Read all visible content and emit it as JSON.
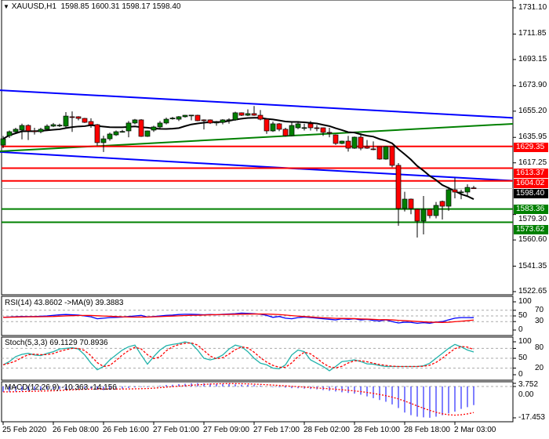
{
  "header": {
    "symbol": "XAUUSD,H1",
    "ohlc": "1598.85 1600.31 1598.17 1598.40",
    "menu_icon": "triangle-down-icon"
  },
  "colors": {
    "bull": "#008000",
    "bear": "#ff0000",
    "ma": "#000000",
    "channel": "#0000ff",
    "support": "#008000",
    "resistance": "#ff0000",
    "rsi": "#0000ff",
    "rsi_ma": "#ff0000",
    "stoch_main": "#20b2aa",
    "stoch_signal": "#ff0000",
    "macd_hist": "#0000ff",
    "macd_signal": "#ff0000"
  },
  "time_axis": [
    "25 Feb 2020",
    "26 Feb 08:00",
    "26 Feb 16:00",
    "27 Feb 01:00",
    "27 Feb 09:00",
    "27 Feb 17:00",
    "28 Feb 02:00",
    "28 Feb 10:00",
    "28 Feb 18:00",
    "2 Mar 03:00"
  ],
  "chart_data": [
    {
      "type": "candlestick",
      "ylim": [
        1522.65,
        1731.1
      ],
      "y_ticks": [
        "1731.10",
        "1711.85",
        "1693.15",
        "1673.90",
        "1655.20",
        "1635.95",
        "1617.25",
        "1579.30",
        "1560.60",
        "1541.35",
        "1522.65"
      ],
      "current_price": "1598.40",
      "candles": [
        [
          1630.3,
          1637,
          1628,
          1634.9
        ],
        [
          1637.2,
          1641,
          1635.5,
          1640.1
        ],
        [
          1640.1,
          1643,
          1639,
          1641.9
        ],
        [
          1641.3,
          1646,
          1634.5,
          1644.7
        ],
        [
          1644.7,
          1645.5,
          1634,
          1640.7
        ],
        [
          1640.7,
          1643,
          1638,
          1640.5
        ],
        [
          1640.1,
          1643,
          1639,
          1641.9
        ],
        [
          1641.9,
          1645.5,
          1641,
          1644.2
        ],
        [
          1644.2,
          1646.5,
          1643.5,
          1645.3
        ],
        [
          1644.7,
          1646,
          1643.5,
          1644.9
        ],
        [
          1644.2,
          1654.5,
          1643,
          1651.6
        ],
        [
          1651.1,
          1655,
          1640,
          1651.0
        ],
        [
          1651.1,
          1651.5,
          1648.5,
          1649.9
        ],
        [
          1649.9,
          1650.3,
          1646.5,
          1647.0
        ],
        [
          1647.6,
          1650,
          1643,
          1645.3
        ],
        [
          1645.3,
          1645.8,
          1630,
          1632.1
        ],
        [
          1632.1,
          1637.2,
          1625.2,
          1634.9
        ],
        [
          1634.9,
          1639.5,
          1633.5,
          1638.4
        ],
        [
          1637.8,
          1641,
          1637,
          1640.1
        ],
        [
          1640.1,
          1641.5,
          1639.5,
          1640.3
        ],
        [
          1640.7,
          1648,
          1636,
          1646.5
        ],
        [
          1646.5,
          1649.5,
          1645.5,
          1648.8
        ],
        [
          1648.8,
          1649.3,
          1636.3,
          1636.7
        ],
        [
          1636.7,
          1641,
          1636.3,
          1640.7
        ],
        [
          1641.3,
          1644.5,
          1640,
          1643.6
        ],
        [
          1643.6,
          1648,
          1642.5,
          1646.5
        ],
        [
          1646.5,
          1650.5,
          1645.5,
          1649.3
        ],
        [
          1649.9,
          1651,
          1649,
          1650.1
        ],
        [
          1649.3,
          1651.6,
          1648,
          1651.1
        ],
        [
          1651.1,
          1652.5,
          1650.5,
          1652.2
        ],
        [
          1652.2,
          1652.4,
          1648.5,
          1652.3
        ],
        [
          1652.2,
          1652.6,
          1647.8,
          1648.2
        ],
        [
          1648.8,
          1649.2,
          1641.8,
          1648.2
        ],
        [
          1648.8,
          1649.2,
          1645.8,
          1646.5
        ],
        [
          1647.0,
          1648,
          1644.5,
          1647.1
        ],
        [
          1647.0,
          1649.3,
          1645.5,
          1648.8
        ],
        [
          1648.8,
          1650,
          1646,
          1648.9
        ],
        [
          1648.8,
          1654.8,
          1648.2,
          1654.0
        ],
        [
          1654.0,
          1654.3,
          1651.6,
          1652.2
        ],
        [
          1652.2,
          1656.5,
          1651.6,
          1653.4
        ],
        [
          1653.4,
          1659,
          1651.8,
          1652.2
        ],
        [
          1652.2,
          1656,
          1648.5,
          1649.3
        ],
        [
          1649.3,
          1650,
          1638.5,
          1640.7
        ],
        [
          1640.7,
          1647.5,
          1640,
          1645.9
        ],
        [
          1645.9,
          1646.5,
          1640.5,
          1641.9
        ],
        [
          1641.9,
          1643,
          1636.5,
          1637.2
        ],
        [
          1637.2,
          1647,
          1636.7,
          1644.7
        ],
        [
          1643.0,
          1647.5,
          1642,
          1645.9
        ],
        [
          1643.0,
          1646,
          1641,
          1643.1
        ],
        [
          1645.9,
          1648,
          1641,
          1643.0
        ],
        [
          1643.0,
          1645,
          1640.5,
          1642.9
        ],
        [
          1643.0,
          1643.3,
          1637,
          1639.6
        ],
        [
          1639.6,
          1643,
          1636,
          1639.5
        ],
        [
          1637.8,
          1638.2,
          1630.5,
          1631.5
        ],
        [
          1631.5,
          1633.6,
          1631,
          1633.2
        ],
        [
          1633.2,
          1637,
          1625.5,
          1628.0
        ],
        [
          1628.0,
          1636.5,
          1627.5,
          1636.1
        ],
        [
          1636.1,
          1639,
          1626.5,
          1628.0
        ],
        [
          1629.2,
          1634,
          1627.5,
          1628.0
        ],
        [
          1627.5,
          1633,
          1626.5,
          1627.4
        ],
        [
          1629.2,
          1629.5,
          1619.5,
          1620.0
        ],
        [
          1620.0,
          1629.6,
          1619.5,
          1629.2
        ],
        [
          1629.2,
          1629.5,
          1614,
          1615.4
        ],
        [
          1615.4,
          1617.1,
          1571.0,
          1583.7
        ],
        [
          1583.7,
          1596.0,
          1581.5,
          1590.6
        ],
        [
          1590.6,
          1591,
          1579.5,
          1583.7
        ],
        [
          1583.1,
          1583.5,
          1562.4,
          1574.5
        ],
        [
          1574.5,
          1592.9,
          1564.7,
          1583.1
        ],
        [
          1583.1,
          1583.5,
          1576.5,
          1578.5
        ],
        [
          1578.5,
          1588.5,
          1576.5,
          1586.0
        ],
        [
          1588.9,
          1589.5,
          1575.6,
          1585.4
        ],
        [
          1585.4,
          1599.5,
          1582.0,
          1597.5
        ],
        [
          1597.5,
          1606.2,
          1591.2,
          1595.8
        ],
        [
          1595.8,
          1597.5,
          1590.5,
          1595.9
        ],
        [
          1595.8,
          1601.5,
          1592.5,
          1599.2
        ],
        [
          1598.85,
          1600.31,
          1598.17,
          1598.4
        ]
      ],
      "horizontal_levels": [
        {
          "price": 1629.35,
          "label": "1629.35",
          "role": "resistance"
        },
        {
          "price": 1613.37,
          "label": "1613.37",
          "role": "resistance"
        },
        {
          "price": 1604.02,
          "label": "1604.02",
          "role": "resistance"
        },
        {
          "price": 1583.36,
          "label": "1583.36",
          "role": "support"
        },
        {
          "price": 1573.62,
          "label": "1573.62",
          "role": "support"
        }
      ],
      "trendlines": [
        {
          "color": "channel",
          "from": [
            -0.5,
            1670.6
          ],
          "to": [
            81.25,
            1650.3
          ]
        },
        {
          "color": "channel",
          "from": [
            -0.5,
            1625.2
          ],
          "to": [
            81.25,
            1604.1
          ]
        },
        {
          "color": "support",
          "from": [
            -0.5,
            1625.7
          ],
          "to": [
            81.25,
            1645.9
          ]
        }
      ],
      "ma_period": 14
    },
    {
      "type": "line",
      "title": "RSI(14) 43.8602  ->MA(9) 39.3883",
      "ylim": [
        0,
        100
      ],
      "y_ticks": [
        "100",
        "70",
        "50",
        "30",
        "0"
      ],
      "levels": [
        70,
        50,
        30
      ],
      "ma_period": 9,
      "rsi": [
        45,
        46,
        47,
        48,
        48,
        48,
        49,
        50,
        52,
        54,
        55,
        54,
        53,
        50,
        47,
        40,
        42,
        44,
        45,
        46,
        48,
        50,
        52,
        46,
        48,
        50,
        52,
        53,
        55,
        56,
        56,
        55,
        54,
        55,
        54,
        56,
        57,
        58,
        60,
        59,
        58,
        56,
        52,
        45,
        48,
        42,
        40,
        44,
        46,
        44,
        42,
        40,
        38,
        36,
        40,
        38,
        40,
        36,
        38,
        34,
        32,
        36,
        30,
        25,
        28,
        27,
        24,
        26,
        24,
        28,
        30,
        36,
        42,
        44,
        44,
        43.86
      ]
    },
    {
      "type": "line",
      "title": "Stoch(5,3,3) 69.1129 70.8936",
      "ylim": [
        0,
        100
      ],
      "y_ticks": [
        "100",
        "80",
        "50",
        "20",
        "0"
      ],
      "levels": [
        80,
        50,
        20
      ],
      "signal_period": 3,
      "main": [
        30,
        40,
        55,
        62,
        65,
        60,
        58,
        65,
        70,
        78,
        80,
        82,
        78,
        60,
        35,
        15,
        25,
        45,
        60,
        75,
        85,
        90,
        60,
        32,
        55,
        75,
        88,
        92,
        95,
        100,
        95,
        75,
        50,
        45,
        50,
        60,
        78,
        90,
        85,
        70,
        50,
        35,
        30,
        20,
        18,
        30,
        60,
        75,
        70,
        45,
        35,
        25,
        12,
        25,
        40,
        42,
        45,
        40,
        33,
        32,
        28,
        25,
        25,
        25,
        25,
        25,
        25,
        27,
        35,
        50,
        65,
        80,
        92,
        85,
        75,
        69.11
      ]
    },
    {
      "type": "bar",
      "title": "MACD(12,26,9) -10.363 -14.156",
      "ylim": [
        -17.453,
        3.752
      ],
      "y_ticks": [
        "3.752",
        "0.00",
        "-17.453"
      ],
      "signal_period": 9,
      "macd": [
        -3,
        -3,
        -2.8,
        -2.5,
        -2.3,
        -2.2,
        -2,
        -1.8,
        -1.7,
        -1.6,
        -1.5,
        -1.2,
        -1,
        -1,
        -1.2,
        -1.8,
        -2,
        -1.8,
        -1.5,
        -1.2,
        -0.8,
        -0.5,
        -0.3,
        -0.3,
        0,
        0.4,
        0.8,
        1,
        1.3,
        1.5,
        1.8,
        1.9,
        1.8,
        1.7,
        1.6,
        1.5,
        1.4,
        1.2,
        1,
        0.9,
        0.8,
        0.5,
        0,
        -0.3,
        -0.4,
        -0.6,
        -0.9,
        -1,
        -1.2,
        -1.4,
        -1.6,
        -2,
        -2.4,
        -2.8,
        -3.2,
        -3.6,
        -4,
        -4.6,
        -5.5,
        -6.5,
        -7.5,
        -8.5,
        -10,
        -12,
        -14.5,
        -16,
        -16.8,
        -17.2,
        -17.4,
        -16.8,
        -16,
        -15,
        -14,
        -12.5,
        -11.5,
        -10.363
      ]
    }
  ]
}
